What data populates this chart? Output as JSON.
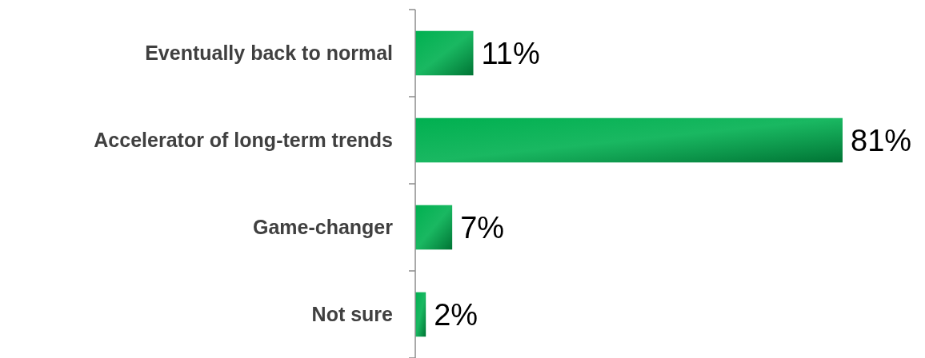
{
  "chart_data": {
    "type": "bar",
    "orientation": "horizontal",
    "categories": [
      "Eventually back to normal",
      "Accelerator of long-term trends",
      "Game-changer",
      "Not sure"
    ],
    "values": [
      11,
      81,
      7,
      2
    ],
    "value_labels": [
      "11%",
      "81%",
      "7%",
      "2%"
    ],
    "color": "#00b050"
  }
}
